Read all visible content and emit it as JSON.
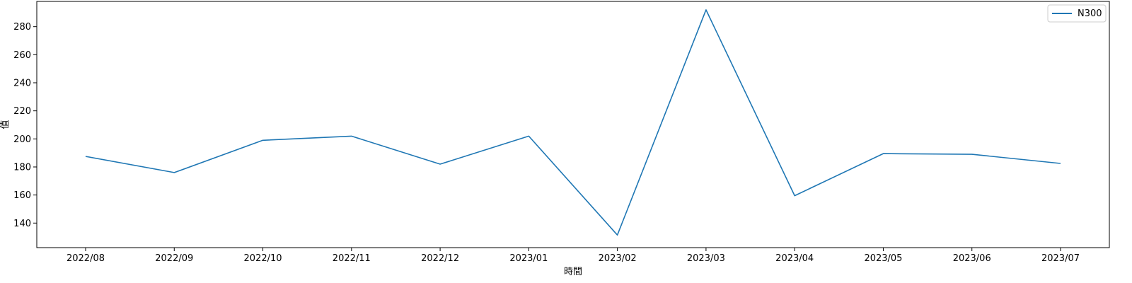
{
  "chart_data": {
    "type": "line",
    "title": "",
    "xlabel": "時間",
    "ylabel": "值",
    "categories": [
      "2022/08",
      "2022/09",
      "2022/10",
      "2022/11",
      "2022/12",
      "2023/01",
      "2023/02",
      "2023/03",
      "2023/04",
      "2023/05",
      "2023/06",
      "2023/07"
    ],
    "series": [
      {
        "name": "N300",
        "color": "#1f77b4",
        "values": [
          187.5,
          176,
          199,
          202,
          182,
          202,
          131.5,
          292,
          159.5,
          189.5,
          189,
          182.5
        ]
      }
    ],
    "ylim": [
      122.5,
      298
    ],
    "yticks": [
      140,
      160,
      180,
      200,
      220,
      240,
      260,
      280
    ],
    "grid": false,
    "legend_position": "top-right"
  }
}
